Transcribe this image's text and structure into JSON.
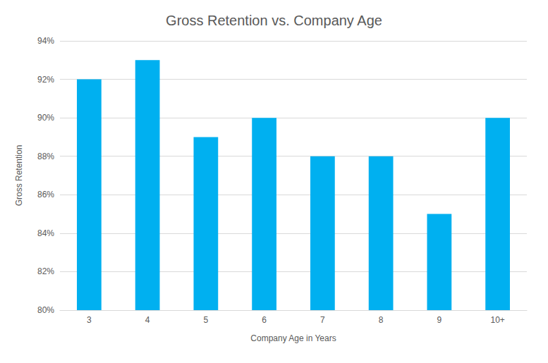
{
  "chart_data": {
    "type": "bar",
    "title": "Gross Retention vs. Company Age",
    "x_label": "Company Age in Years",
    "y_label": "Gross Retention",
    "categories": [
      "3",
      "4",
      "5",
      "6",
      "7",
      "8",
      "9",
      "10+"
    ],
    "values": [
      92,
      93,
      89,
      90,
      88,
      88,
      85,
      90
    ],
    "color": "#00b0f0",
    "ylim": [
      80,
      94
    ],
    "yticks": [
      {
        "value": 80,
        "label": "80%"
      },
      {
        "value": 82,
        "label": "82%"
      },
      {
        "value": 84,
        "label": "84%"
      },
      {
        "value": 86,
        "label": "86%"
      },
      {
        "value": 88,
        "label": "88%"
      },
      {
        "value": 90,
        "label": "90%"
      },
      {
        "value": 92,
        "label": "92%"
      },
      {
        "value": 94,
        "label": "94%"
      }
    ],
    "grid": true
  }
}
